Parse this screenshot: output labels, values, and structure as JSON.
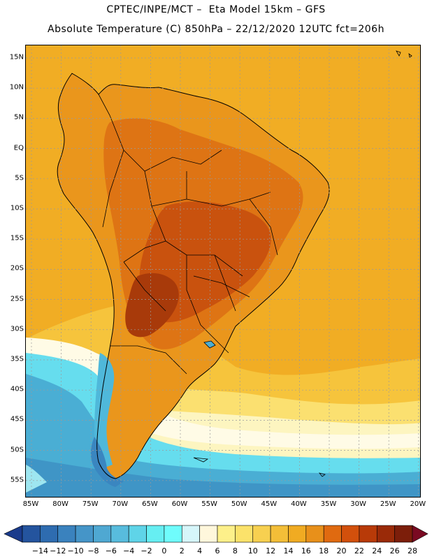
{
  "header": {
    "line1": "CPTEC/INPE/MCT –  Eta Model 15km – GFS",
    "line2": "Absolute Temperature (C) 850hPa – 22/12/2020 12UTC fct=206h"
  },
  "axes": {
    "lat_labels": [
      "15N",
      "10N",
      "5N",
      "EQ",
      "5S",
      "10S",
      "15S",
      "20S",
      "25S",
      "30S",
      "35S",
      "40S",
      "45S",
      "50S",
      "55S"
    ],
    "lon_labels": [
      "85W",
      "80W",
      "75W",
      "70W",
      "65W",
      "60W",
      "55W",
      "50W",
      "45W",
      "40W",
      "35W",
      "30W",
      "25W",
      "20W"
    ]
  },
  "colorbar": {
    "labels": [
      "-14",
      "-12",
      "-10",
      "-8",
      "-6",
      "-4",
      "-2",
      "0",
      "2",
      "4",
      "6",
      "8",
      "10",
      "12",
      "14",
      "16",
      "18",
      "20",
      "22",
      "24",
      "26",
      "28"
    ],
    "colors": [
      "#1a3b8c",
      "#24549e",
      "#2e6cb0",
      "#3a82be",
      "#4595c8",
      "#4fa8d2",
      "#58bcdd",
      "#5fd4e8",
      "#66eef2",
      "#6ffcfc",
      "#d6f6fa",
      "#fff7dc",
      "#fdf08a",
      "#fbe26a",
      "#f7d050",
      "#f3be38",
      "#f0ab22",
      "#e8901a",
      "#e06a10",
      "#d2500c",
      "#b83a08",
      "#9a2a08",
      "#7c1e0a",
      "#7a0a22"
    ]
  },
  "legend_map": {
    "colors": {
      "ocean_warm": "#f1ad24",
      "ocean_mild": "#f6c43c",
      "ocean_cool": "#fbe070",
      "pale": "#fdf5c0",
      "white_band": "#fffbe6",
      "cyan": "#66ddee",
      "blue": "#4aaed4",
      "deep_blue": "#3f95c6",
      "land_warm": "#ea961c",
      "land_hot": "#de7414",
      "land_hotter": "#c9520e",
      "land_hottest": "#a83a0a",
      "border": "#000000",
      "grid": "#9a9a9a"
    }
  }
}
